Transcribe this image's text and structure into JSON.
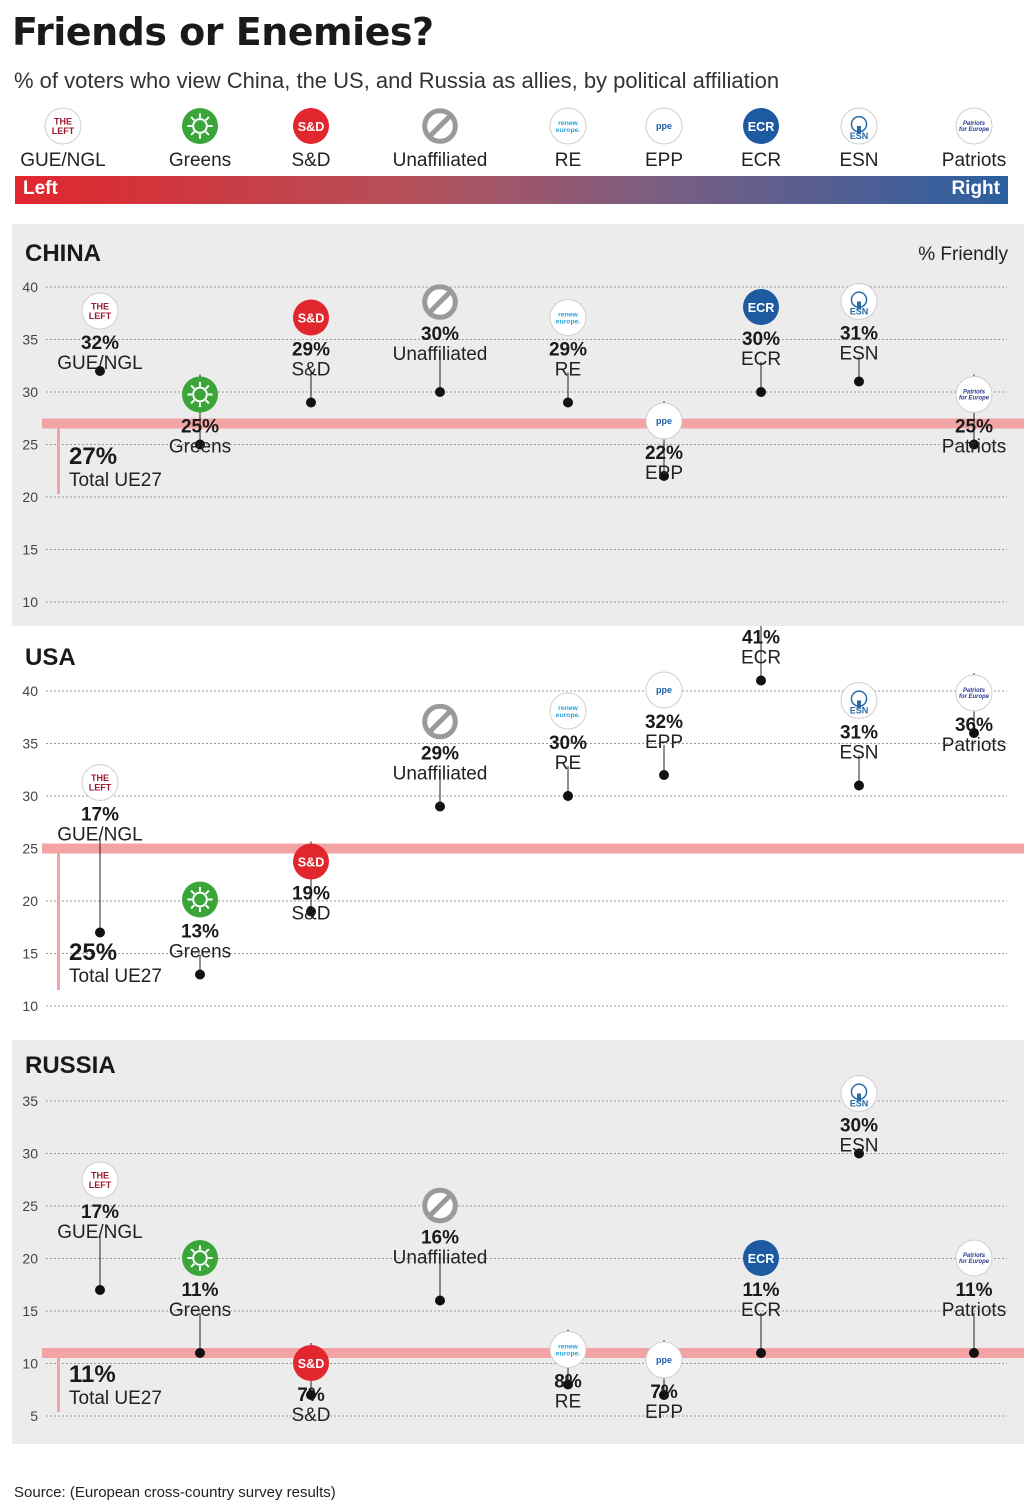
{
  "header": {
    "title": "Friends or Enemies?",
    "subtitle": "% of voters who view China, the US, and Russia as allies, by political affiliation"
  },
  "scale": {
    "left": "Left",
    "right": "Right"
  },
  "parties": [
    {
      "key": "GUE",
      "label": "GUE/NGL",
      "logo_text": "THE LEFT",
      "icon": "the-left-logo",
      "color": "#9a1b2d"
    },
    {
      "key": "GRE",
      "label": "Greens",
      "logo_text": "",
      "icon": "greens-sunflower-logo",
      "color": "#3aa539"
    },
    {
      "key": "SD",
      "label": "S&D",
      "logo_text": "S&D",
      "icon": "sd-logo",
      "color": "#e1262d"
    },
    {
      "key": "UNA",
      "label": "Unaffiliated",
      "logo_text": "",
      "icon": "prohibited-sign-icon",
      "color": "#9a9a9a"
    },
    {
      "key": "RE",
      "label": "RE",
      "logo_text": "renew europe.",
      "icon": "renew-europe-logo",
      "color": "#2aa3d8"
    },
    {
      "key": "EPP",
      "label": "EPP",
      "logo_text": "ppe",
      "icon": "epp-logo",
      "color": "#1b5fa8"
    },
    {
      "key": "ECR",
      "label": "ECR",
      "logo_text": "ECR",
      "icon": "ecr-logo",
      "color": "#1d5aa0"
    },
    {
      "key": "ESN",
      "label": "ESN",
      "logo_text": "ESN",
      "icon": "esn-tree-logo",
      "color": "#2b6aa6"
    },
    {
      "key": "PFE",
      "label": "Patriots",
      "logo_text": "Patriots for Europe",
      "icon": "patriots-logo",
      "color": "#2a3a8c"
    }
  ],
  "total_label": "Total UE27",
  "friendly_label": "% Friendly",
  "chart_data": [
    {
      "type": "dot",
      "title": "CHINA",
      "ylim": [
        10,
        40
      ],
      "yticks": [
        10,
        15,
        20,
        25,
        30,
        35,
        40
      ],
      "grid": true,
      "total": {
        "label": "27%",
        "value": 27
      },
      "points": [
        {
          "party": "GUE",
          "value": 32,
          "label": "32%"
        },
        {
          "party": "GRE",
          "value": 25,
          "label": "25%"
        },
        {
          "party": "SD",
          "value": 29,
          "label": "29%"
        },
        {
          "party": "UNA",
          "value": 30,
          "label": "30%"
        },
        {
          "party": "RE",
          "value": 29,
          "label": "29%"
        },
        {
          "party": "EPP",
          "value": 22,
          "label": "22%"
        },
        {
          "party": "ECR",
          "value": 30,
          "label": "30%"
        },
        {
          "party": "ESN",
          "value": 31,
          "label": "31%"
        },
        {
          "party": "PFE",
          "value": 25,
          "label": "25%"
        }
      ]
    },
    {
      "type": "dot",
      "title": "USA",
      "ylim": [
        10,
        40
      ],
      "yticks": [
        10,
        15,
        20,
        25,
        30,
        35,
        40
      ],
      "grid": true,
      "total": {
        "label": "25%",
        "value": 25
      },
      "points": [
        {
          "party": "GUE",
          "value": 17,
          "label": "17%"
        },
        {
          "party": "GRE",
          "value": 13,
          "label": "13%"
        },
        {
          "party": "SD",
          "value": 19,
          "label": "19%"
        },
        {
          "party": "UNA",
          "value": 29,
          "label": "29%"
        },
        {
          "party": "RE",
          "value": 30,
          "label": "30%"
        },
        {
          "party": "EPP",
          "value": 32,
          "label": "32%"
        },
        {
          "party": "ECR",
          "value": 41,
          "label": "41%"
        },
        {
          "party": "ESN",
          "value": 31,
          "label": "31%"
        },
        {
          "party": "PFE",
          "value": 36,
          "label": "36%"
        }
      ]
    },
    {
      "type": "dot",
      "title": "RUSSIA",
      "ylim": [
        5,
        35
      ],
      "yticks": [
        5,
        10,
        15,
        20,
        25,
        30,
        35
      ],
      "grid": true,
      "total": {
        "label": "11%",
        "value": 11
      },
      "points": [
        {
          "party": "GUE",
          "value": 17,
          "label": "17%"
        },
        {
          "party": "GRE",
          "value": 11,
          "label": "11%"
        },
        {
          "party": "SD",
          "value": 7,
          "label": "7%"
        },
        {
          "party": "UNA",
          "value": 16,
          "label": "16%"
        },
        {
          "party": "RE",
          "value": 8,
          "label": "8%"
        },
        {
          "party": "EPP",
          "value": 7,
          "label": "7%"
        },
        {
          "party": "ECR",
          "value": 11,
          "label": "11%"
        },
        {
          "party": "ESN",
          "value": 30,
          "label": "30%"
        },
        {
          "party": "PFE",
          "value": 11,
          "label": "11%"
        }
      ]
    }
  ],
  "source": "Source: (European cross-country survey results)"
}
